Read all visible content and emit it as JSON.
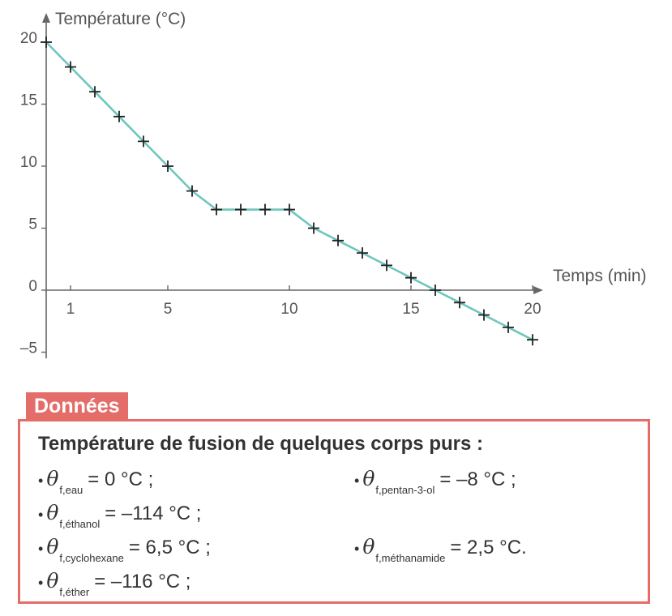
{
  "chart_data": {
    "type": "line",
    "ylabel": "Température (°C)",
    "xlabel": "Temps (min)",
    "x": [
      0,
      1,
      2,
      3,
      4,
      5,
      6,
      7,
      8,
      9,
      10,
      11,
      12,
      13,
      14,
      15,
      16,
      17,
      18,
      19,
      20
    ],
    "series": [
      {
        "values": [
          20,
          18,
          16,
          14,
          12,
          10,
          8,
          6.5,
          6.5,
          6.5,
          6.5,
          5,
          4,
          3,
          2,
          1,
          0,
          -1,
          -2,
          -3,
          -4
        ]
      }
    ],
    "xlim": [
      0,
      20.5
    ],
    "ylim": [
      -5.5,
      21
    ],
    "xticks": [
      "1",
      "5",
      "10",
      "15",
      "20"
    ],
    "yticks": [
      "20",
      "15",
      "10",
      "5",
      "0",
      "-5"
    ],
    "ytick_labels": [
      "20",
      "15",
      "10",
      "5",
      "0",
      "–5"
    ],
    "line_color": "#6ec6bd",
    "marker": "+",
    "grid": false
  },
  "donnees": {
    "tab_label": "Données",
    "heading": "Température de fusion de quelques corps purs :",
    "bullet": "•",
    "theta": "θ",
    "entries": [
      {
        "sub": "f,eau",
        "value": "= 0 °C ;"
      },
      {
        "sub": "f,pentan-3-ol",
        "value": "= –8 °C ;"
      },
      {
        "sub": "f,éthanol",
        "value": "= –114 °C ;"
      },
      {
        "sub": "f,cyclohexane",
        "value": "= 6,5 °C ;"
      },
      {
        "sub": "f,méthanamide",
        "value": "= 2,5 °C."
      },
      {
        "sub": "f,éther",
        "value": "= –116 °C ;"
      }
    ],
    "accent_color": "#e46d6a"
  }
}
